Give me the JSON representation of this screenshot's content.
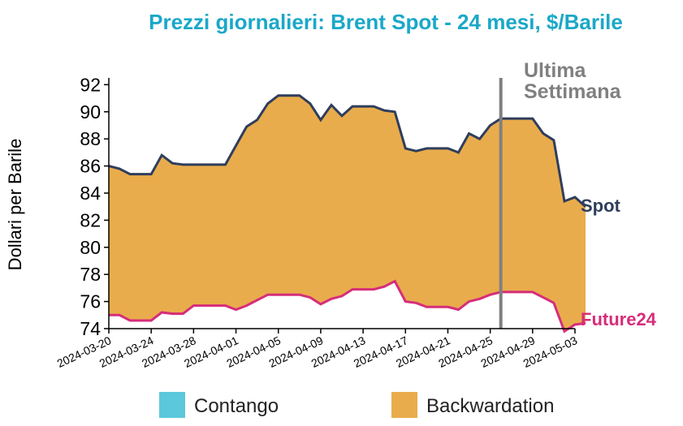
{
  "chart_data": {
    "type": "area",
    "title": "Prezzi giornalieri: Brent Spot - 24 mesi, $/Barile",
    "ylabel": "Dollari per Barile",
    "xlabel": "",
    "ylim": [
      74,
      92.5
    ],
    "yticks": [
      74,
      76,
      78,
      80,
      82,
      84,
      86,
      88,
      90,
      92
    ],
    "xlim": [
      "2024-03-20",
      "2024-05-03"
    ],
    "xticks": [
      "2024-03-20",
      "2024-03-24",
      "2024-03-28",
      "2024-04-01",
      "2024-04-05",
      "2024-04-09",
      "2024-04-13",
      "2024-04-17",
      "2024-04-21",
      "2024-04-25",
      "2024-04-29",
      "2024-05-03"
    ],
    "grid": false,
    "series": [
      {
        "name": "Spot",
        "color": "#2f3e5c",
        "points": [
          [
            "2024-03-20",
            86.0
          ],
          [
            "2024-03-21",
            85.8
          ],
          [
            "2024-03-22",
            85.4
          ],
          [
            "2024-03-23",
            85.4
          ],
          [
            "2024-03-24",
            85.4
          ],
          [
            "2024-03-25",
            86.8
          ],
          [
            "2024-03-26",
            86.2
          ],
          [
            "2024-03-27",
            86.1
          ],
          [
            "2024-03-28",
            86.1
          ],
          [
            "2024-03-29",
            86.1
          ],
          [
            "2024-03-30",
            86.1
          ],
          [
            "2024-03-31",
            86.1
          ],
          [
            "2024-04-01",
            87.5
          ],
          [
            "2024-04-02",
            88.9
          ],
          [
            "2024-04-03",
            89.4
          ],
          [
            "2024-04-04",
            90.6
          ],
          [
            "2024-04-05",
            91.2
          ],
          [
            "2024-04-06",
            91.2
          ],
          [
            "2024-04-07",
            91.2
          ],
          [
            "2024-04-08",
            90.6
          ],
          [
            "2024-04-09",
            89.4
          ],
          [
            "2024-04-10",
            90.5
          ],
          [
            "2024-04-11",
            89.7
          ],
          [
            "2024-04-12",
            90.4
          ],
          [
            "2024-04-13",
            90.4
          ],
          [
            "2024-04-14",
            90.4
          ],
          [
            "2024-04-15",
            90.1
          ],
          [
            "2024-04-16",
            90.0
          ],
          [
            "2024-04-17",
            87.3
          ],
          [
            "2024-04-18",
            87.1
          ],
          [
            "2024-04-19",
            87.3
          ],
          [
            "2024-04-20",
            87.3
          ],
          [
            "2024-04-21",
            87.3
          ],
          [
            "2024-04-22",
            87.0
          ],
          [
            "2024-04-23",
            88.4
          ],
          [
            "2024-04-24",
            88.0
          ],
          [
            "2024-04-25",
            89.0
          ],
          [
            "2024-04-26",
            89.5
          ],
          [
            "2024-04-27",
            89.5
          ],
          [
            "2024-04-28",
            89.5
          ],
          [
            "2024-04-29",
            89.5
          ],
          [
            "2024-04-30",
            88.4
          ],
          [
            "2024-05-01",
            87.9
          ],
          [
            "2024-05-02",
            83.4
          ],
          [
            "2024-05-03",
            83.7
          ],
          [
            "2024-05-04",
            83.0
          ]
        ]
      },
      {
        "name": "Future24",
        "color": "#d62d7a",
        "points": [
          [
            "2024-03-20",
            75.0
          ],
          [
            "2024-03-21",
            75.0
          ],
          [
            "2024-03-22",
            74.6
          ],
          [
            "2024-03-23",
            74.6
          ],
          [
            "2024-03-24",
            74.6
          ],
          [
            "2024-03-25",
            75.2
          ],
          [
            "2024-03-26",
            75.1
          ],
          [
            "2024-03-27",
            75.1
          ],
          [
            "2024-03-28",
            75.7
          ],
          [
            "2024-03-29",
            75.7
          ],
          [
            "2024-03-30",
            75.7
          ],
          [
            "2024-03-31",
            75.7
          ],
          [
            "2024-04-01",
            75.4
          ],
          [
            "2024-04-02",
            75.7
          ],
          [
            "2024-04-03",
            76.1
          ],
          [
            "2024-04-04",
            76.5
          ],
          [
            "2024-04-05",
            76.5
          ],
          [
            "2024-04-06",
            76.5
          ],
          [
            "2024-04-07",
            76.5
          ],
          [
            "2024-04-08",
            76.3
          ],
          [
            "2024-04-09",
            75.8
          ],
          [
            "2024-04-10",
            76.2
          ],
          [
            "2024-04-11",
            76.4
          ],
          [
            "2024-04-12",
            76.9
          ],
          [
            "2024-04-13",
            76.9
          ],
          [
            "2024-04-14",
            76.9
          ],
          [
            "2024-04-15",
            77.1
          ],
          [
            "2024-04-16",
            77.5
          ],
          [
            "2024-04-17",
            76.0
          ],
          [
            "2024-04-18",
            75.9
          ],
          [
            "2024-04-19",
            75.6
          ],
          [
            "2024-04-20",
            75.6
          ],
          [
            "2024-04-21",
            75.6
          ],
          [
            "2024-04-22",
            75.4
          ],
          [
            "2024-04-23",
            76.0
          ],
          [
            "2024-04-24",
            76.2
          ],
          [
            "2024-04-25",
            76.5
          ],
          [
            "2024-04-26",
            76.7
          ],
          [
            "2024-04-27",
            76.7
          ],
          [
            "2024-04-28",
            76.7
          ],
          [
            "2024-04-29",
            76.7
          ],
          [
            "2024-04-30",
            76.3
          ],
          [
            "2024-05-01",
            75.9
          ],
          [
            "2024-05-02",
            73.8
          ],
          [
            "2024-05-03",
            74.3
          ],
          [
            "2024-05-04",
            74.4
          ]
        ]
      }
    ],
    "fills": [
      {
        "name": "Contango",
        "color": "#5bc8dc"
      },
      {
        "name": "Backwardation",
        "color": "#e9ac4c"
      }
    ],
    "annotation": {
      "label_line1": "Ultima",
      "label_line2": "Settimana",
      "x": "2024-04-26",
      "color": "#808080"
    },
    "legend": "bottom",
    "title_color": "#1aa8c8"
  }
}
